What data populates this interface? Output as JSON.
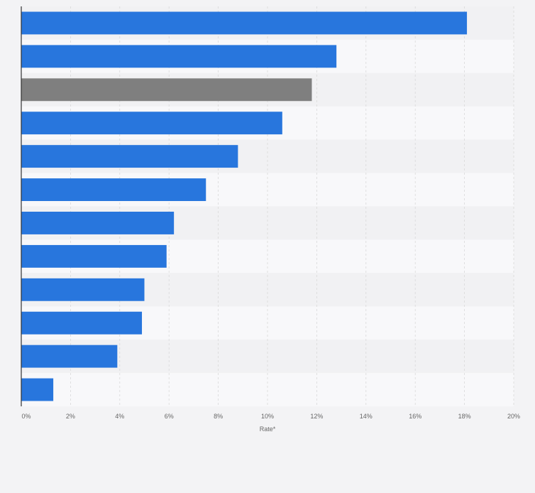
{
  "chart_data": {
    "type": "bar",
    "orientation": "horizontal",
    "categories": [
      "",
      "",
      "",
      "",
      "",
      "",
      "",
      "",
      "",
      "",
      "",
      ""
    ],
    "values": [
      18.1,
      12.8,
      11.8,
      10.6,
      8.8,
      7.5,
      6.2,
      5.9,
      5.0,
      4.9,
      3.9,
      1.3
    ],
    "highlight_index": 2,
    "xlabel": "Rate*",
    "xlim": [
      0,
      20
    ],
    "xticks": [
      0,
      2,
      4,
      6,
      8,
      10,
      12,
      14,
      16,
      18,
      20
    ],
    "xtick_labels": [
      "0%",
      "2%",
      "4%",
      "6%",
      "8%",
      "10%",
      "12%",
      "14%",
      "16%",
      "18%",
      "20%"
    ],
    "grid": true,
    "legend": "none",
    "colors": {
      "bar": "#2876dd",
      "highlight_bar": "#7f7f7f",
      "band_a": "#f1f1f3",
      "band_b": "#f8f8fa",
      "grid": "#d9d9d9",
      "axis": "#333333",
      "text": "#666666",
      "background": "#f3f3f5"
    }
  }
}
